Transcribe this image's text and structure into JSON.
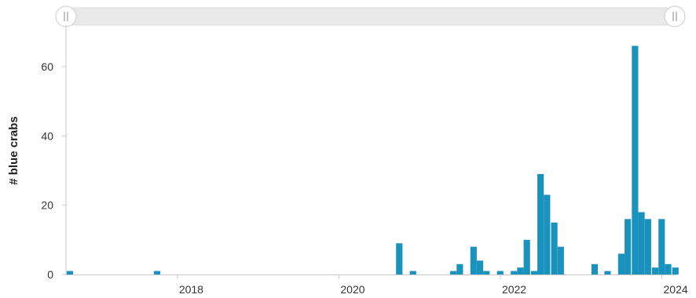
{
  "chart_data": {
    "type": "bar",
    "title": "",
    "xlabel": "",
    "ylabel": "# blue crabs",
    "grid": false,
    "legend": "none",
    "colors": {
      "bar": "#1a92be",
      "axis": "#c9c9c9",
      "slider_track": "#e9e9e9"
    },
    "xlim": [
      2016.62,
      2024.18
    ],
    "ylim": [
      0,
      72
    ],
    "x_ticks": [
      2018,
      2020,
      2022,
      2024
    ],
    "x_tick_labels": [
      "2018",
      "2020",
      "2022",
      "2024"
    ],
    "y_ticks": [
      0,
      20,
      40,
      60
    ],
    "y_tick_labels": [
      "0",
      "20",
      "40",
      "60"
    ],
    "bin_width_years": 0.0833,
    "x": [
      2016.67,
      2017.75,
      2020.75,
      2020.92,
      2021.42,
      2021.5,
      2021.67,
      2021.75,
      2021.83,
      2022.0,
      2022.17,
      2022.25,
      2022.33,
      2022.42,
      2022.5,
      2022.58,
      2022.67,
      2022.75,
      2022.83,
      2023.17,
      2023.33,
      2023.5,
      2023.58,
      2023.67,
      2023.75,
      2023.83,
      2023.92,
      2024.0,
      2024.08,
      2024.17
    ],
    "values": [
      1,
      1,
      9,
      1,
      1,
      3,
      8,
      4,
      1,
      1,
      1,
      2,
      10,
      1,
      29,
      23,
      15,
      8,
      0,
      3,
      1,
      6,
      16,
      66,
      18,
      16,
      2,
      16,
      3,
      2
    ]
  },
  "range_slider": {
    "left_handle_icon": "grip-lines-icon",
    "right_handle_icon": "grip-lines-icon"
  }
}
